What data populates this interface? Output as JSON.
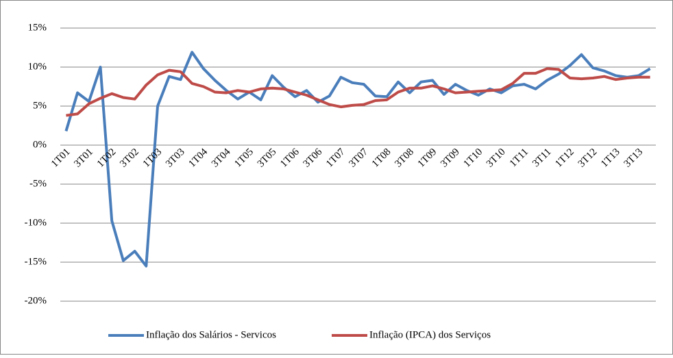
{
  "chart_data": {
    "type": "line",
    "categories": [
      "1T01",
      null,
      "3T01",
      null,
      "1T02",
      null,
      "3T02",
      null,
      "1T03",
      null,
      "3T03",
      null,
      "1T04",
      null,
      "3T04",
      null,
      "1T05",
      null,
      "3T05",
      null,
      "1T06",
      null,
      "3T06",
      null,
      "1T07",
      null,
      "3T07",
      null,
      "1T08",
      null,
      "3T08",
      null,
      "1T09",
      null,
      "3T09",
      null,
      "1T10",
      null,
      "3T10",
      null,
      "1T11",
      null,
      "3T11",
      null,
      "1T12",
      null,
      "3T12",
      null,
      "1T13",
      null,
      "3T13",
      null
    ],
    "series": [
      {
        "name": "Inflação dos Salários - Servicos",
        "color": "#4a7ebb",
        "values": [
          1.8,
          6.7,
          5.6,
          10.0,
          -9.7,
          -14.8,
          -13.6,
          -15.5,
          5.0,
          8.8,
          8.4,
          11.9,
          9.8,
          8.3,
          7.0,
          5.9,
          6.8,
          5.8,
          8.9,
          7.4,
          6.2,
          7.0,
          5.5,
          6.3,
          8.7,
          8.0,
          7.8,
          6.3,
          6.2,
          8.1,
          6.7,
          8.1,
          8.3,
          6.5,
          7.8,
          7.0,
          6.4,
          7.2,
          6.7,
          7.6,
          7.8,
          7.2,
          8.3,
          9.1,
          10.2,
          11.6,
          9.9,
          9.5,
          8.9,
          8.7,
          8.9,
          9.8
        ]
      },
      {
        "name": "Inflação (IPCA) dos Serviços",
        "color": "#be4b48",
        "values": [
          3.8,
          4.0,
          5.3,
          6.0,
          6.6,
          6.1,
          5.9,
          7.7,
          9.0,
          9.6,
          9.4,
          7.9,
          7.5,
          6.8,
          6.7,
          7.0,
          6.8,
          7.2,
          7.3,
          7.2,
          6.8,
          6.4,
          5.8,
          5.2,
          4.9,
          5.1,
          5.2,
          5.7,
          5.8,
          6.8,
          7.3,
          7.3,
          7.6,
          7.2,
          6.7,
          6.8,
          6.9,
          7.0,
          7.1,
          7.9,
          9.2,
          9.2,
          9.8,
          9.7,
          8.6,
          8.5,
          8.6,
          8.8,
          8.4,
          8.6,
          8.7,
          8.7
        ]
      }
    ],
    "ylim": [
      -20,
      15
    ],
    "yticks": [
      {
        "value": -20,
        "label": "-20%"
      },
      {
        "value": -15,
        "label": "-15%"
      },
      {
        "value": -10,
        "label": "-10%"
      },
      {
        "value": -5,
        "label": "-5%"
      },
      {
        "value": 0,
        "label": "0%"
      },
      {
        "value": 5,
        "label": "5%"
      },
      {
        "value": 10,
        "label": "10%"
      },
      {
        "value": 15,
        "label": "15%"
      }
    ],
    "grid": true,
    "legend": "bottom"
  }
}
